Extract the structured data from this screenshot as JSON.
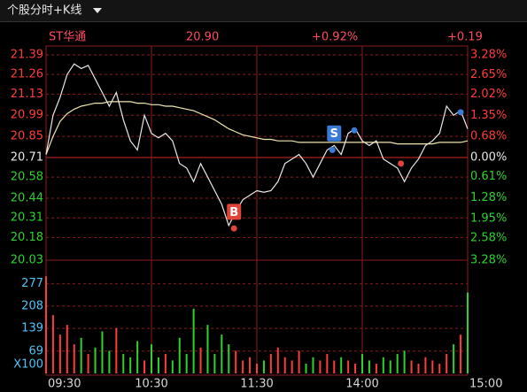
{
  "toolbar": {
    "title": "个股分时+K线"
  },
  "quote": {
    "name": "ST华通",
    "price": "20.90",
    "change_pct": "+0.92%",
    "change": "+0.19"
  },
  "chart_data": [
    {
      "type": "line",
      "x": [
        0,
        4,
        8,
        12,
        16,
        20,
        24,
        28,
        32,
        36,
        40,
        44,
        48,
        52,
        56,
        60,
        64,
        68,
        72,
        76,
        80,
        84,
        88,
        92,
        96,
        100,
        104,
        108,
        112,
        116,
        120,
        124,
        128,
        132,
        136,
        140,
        144,
        148,
        152,
        156,
        160,
        164,
        168,
        172,
        176,
        180,
        184,
        188,
        192,
        196,
        200,
        204,
        208,
        212,
        216,
        220,
        224,
        228,
        232,
        236,
        240
      ],
      "series": [
        {
          "name": "price",
          "color": "#e8e8e8",
          "values": [
            20.73,
            20.99,
            21.11,
            21.26,
            21.33,
            21.3,
            21.32,
            21.23,
            21.14,
            21.05,
            21.14,
            20.96,
            20.82,
            20.76,
            20.99,
            20.87,
            20.84,
            20.87,
            20.82,
            20.67,
            20.64,
            20.55,
            20.67,
            20.58,
            20.49,
            20.4,
            20.26,
            20.35,
            20.43,
            20.46,
            20.49,
            20.48,
            20.49,
            20.55,
            20.67,
            20.7,
            20.73,
            20.67,
            20.58,
            20.67,
            20.76,
            20.79,
            20.73,
            20.87,
            20.9,
            20.82,
            20.79,
            20.82,
            20.7,
            20.67,
            20.64,
            20.55,
            20.64,
            20.7,
            20.79,
            20.82,
            20.87,
            21.05,
            20.99,
            21.02,
            20.9
          ]
        },
        {
          "name": "average",
          "color": "#f0e6b0",
          "values": [
            20.73,
            20.85,
            20.95,
            21.0,
            21.03,
            21.05,
            21.06,
            21.07,
            21.07,
            21.08,
            21.08,
            21.08,
            21.08,
            21.07,
            21.07,
            21.06,
            21.06,
            21.05,
            21.05,
            21.04,
            21.03,
            21.02,
            21.0,
            20.98,
            20.96,
            20.93,
            20.9,
            20.88,
            20.86,
            20.85,
            20.84,
            20.83,
            20.83,
            20.82,
            20.82,
            20.82,
            20.81,
            20.81,
            20.81,
            20.81,
            20.81,
            20.81,
            20.81,
            20.81,
            20.81,
            20.81,
            20.81,
            20.81,
            20.81,
            20.81,
            20.8,
            20.8,
            20.8,
            20.8,
            20.8,
            20.8,
            20.81,
            20.81,
            20.81,
            20.81,
            20.82
          ]
        }
      ],
      "xlim": [
        0,
        240
      ],
      "ylim": [
        20.03,
        21.39
      ],
      "yticks": [
        21.39,
        21.26,
        21.13,
        20.99,
        20.85,
        20.71,
        20.58,
        20.44,
        20.31,
        20.18,
        20.03
      ],
      "y2lim": [
        -3.28,
        3.28
      ],
      "y2ticks": [
        {
          "value": 3.28,
          "label": "3.28%"
        },
        {
          "value": 2.65,
          "label": "2.65%"
        },
        {
          "value": 2.02,
          "label": "2.02%"
        },
        {
          "value": 1.35,
          "label": "1.35%"
        },
        {
          "value": 0.68,
          "label": "0.68%"
        },
        {
          "value": 0,
          "label": "0.00%"
        },
        {
          "value": -0.61,
          "label": "0.61%"
        },
        {
          "value": -1.28,
          "label": "1.28%"
        },
        {
          "value": -1.95,
          "label": "1.95%"
        },
        {
          "value": -2.58,
          "label": "2.58%"
        },
        {
          "value": -3.28,
          "label": "3.28%"
        }
      ],
      "up_color": "#ff3b3b",
      "down_color": "#2ed12e",
      "grid_color": "#8c1c1c",
      "annotations": [
        {
          "text": "B",
          "x": 107,
          "y": 20.35,
          "color": "#e0453a"
        },
        {
          "text": "S",
          "x": 164,
          "y": 20.87,
          "color": "#3a7bd5"
        }
      ],
      "points": [
        {
          "x": 107,
          "y": 20.24,
          "color": "#e0453a"
        },
        {
          "x": 202,
          "y": 20.67,
          "color": "#e0453a"
        },
        {
          "x": 163,
          "y": 20.76,
          "color": "#3a7bd5"
        },
        {
          "x": 175.5,
          "y": 20.89,
          "color": "#3a7bd5"
        },
        {
          "x": 236,
          "y": 21.01,
          "color": "#3a7bd5"
        }
      ]
    },
    {
      "type": "bar",
      "x": [
        0,
        4,
        8,
        12,
        16,
        20,
        24,
        28,
        32,
        36,
        40,
        44,
        48,
        52,
        56,
        60,
        64,
        68,
        72,
        76,
        80,
        84,
        88,
        92,
        96,
        100,
        104,
        108,
        112,
        116,
        120,
        124,
        128,
        132,
        136,
        140,
        144,
        148,
        152,
        156,
        160,
        164,
        168,
        172,
        176,
        180,
        184,
        188,
        192,
        196,
        200,
        204,
        208,
        212,
        216,
        220,
        224,
        228,
        232,
        236,
        240
      ],
      "values": [
        300,
        180,
        120,
        150,
        90,
        110,
        60,
        80,
        130,
        70,
        140,
        60,
        50,
        100,
        40,
        90,
        50,
        60,
        40,
        110,
        60,
        200,
        80,
        150,
        60,
        120,
        90,
        70,
        40,
        50,
        30,
        40,
        60,
        80,
        50,
        40,
        70,
        30,
        50,
        40,
        60,
        40,
        50,
        40,
        30,
        60,
        40,
        30,
        50,
        40,
        60,
        70,
        40,
        30,
        50,
        40,
        30,
        60,
        90,
        120,
        250
      ],
      "unit": "X100",
      "xlim": [
        0,
        240
      ],
      "ylim": [
        0,
        350
      ],
      "yticks": [
        277,
        208,
        139,
        69
      ],
      "xticks": [
        {
          "value": 0,
          "label": "09:30"
        },
        {
          "value": 60,
          "label": "10:30"
        },
        {
          "value": 120,
          "label": "11:30"
        },
        {
          "value": 180,
          "label": "14:00"
        },
        {
          "value": 240,
          "label": "15:00"
        }
      ]
    }
  ]
}
